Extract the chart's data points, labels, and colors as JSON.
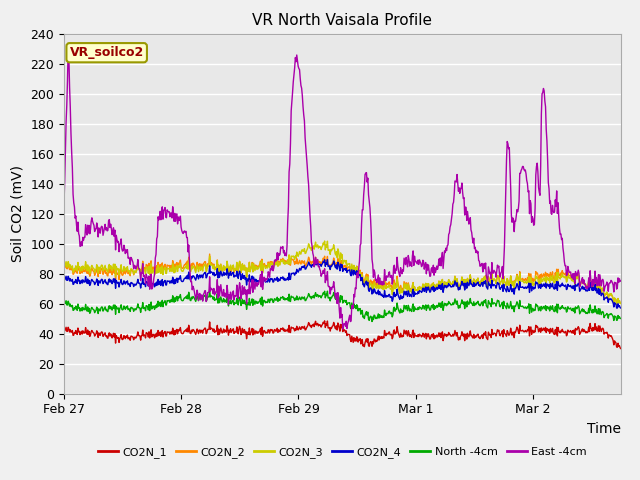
{
  "title": "VR North Vaisala Profile",
  "ylabel": "Soil CO2 (mV)",
  "xlabel": "Time",
  "annotation": "VR_soilco2",
  "ylim": [
    0,
    240
  ],
  "yticks": [
    0,
    20,
    40,
    60,
    80,
    100,
    120,
    140,
    160,
    180,
    200,
    220,
    240
  ],
  "fig_bg_color": "#f0f0f0",
  "plot_bg_color": "#e8e8e8",
  "n_points": 800,
  "series": {
    "CO2N_1": {
      "color": "#cc0000",
      "features": [
        {
          "t": 0.0,
          "v": 42
        },
        {
          "t": 0.05,
          "v": 41
        },
        {
          "t": 0.1,
          "v": 37
        },
        {
          "t": 0.15,
          "v": 39
        },
        {
          "t": 0.2,
          "v": 41
        },
        {
          "t": 0.25,
          "v": 42
        },
        {
          "t": 0.3,
          "v": 42
        },
        {
          "t": 0.35,
          "v": 41
        },
        {
          "t": 0.4,
          "v": 42
        },
        {
          "t": 0.45,
          "v": 46
        },
        {
          "t": 0.5,
          "v": 44
        },
        {
          "t": 0.52,
          "v": 35
        },
        {
          "t": 0.55,
          "v": 34
        },
        {
          "t": 0.58,
          "v": 40
        },
        {
          "t": 0.6,
          "v": 40
        },
        {
          "t": 0.65,
          "v": 39
        },
        {
          "t": 0.7,
          "v": 39
        },
        {
          "t": 0.75,
          "v": 38
        },
        {
          "t": 0.8,
          "v": 41
        },
        {
          "t": 0.85,
          "v": 43
        },
        {
          "t": 0.9,
          "v": 41
        },
        {
          "t": 0.92,
          "v": 42
        },
        {
          "t": 0.95,
          "v": 43
        },
        {
          "t": 0.97,
          "v": 42
        },
        {
          "t": 1.0,
          "v": 30
        }
      ],
      "noise": 1.5
    },
    "CO2N_2": {
      "color": "#ff8800",
      "features": [
        {
          "t": 0.0,
          "v": 84
        },
        {
          "t": 0.05,
          "v": 82
        },
        {
          "t": 0.1,
          "v": 80
        },
        {
          "t": 0.15,
          "v": 84
        },
        {
          "t": 0.2,
          "v": 85
        },
        {
          "t": 0.25,
          "v": 86
        },
        {
          "t": 0.3,
          "v": 83
        },
        {
          "t": 0.35,
          "v": 85
        },
        {
          "t": 0.4,
          "v": 88
        },
        {
          "t": 0.45,
          "v": 88
        },
        {
          "t": 0.5,
          "v": 86
        },
        {
          "t": 0.53,
          "v": 80
        },
        {
          "t": 0.55,
          "v": 75
        },
        {
          "t": 0.6,
          "v": 72
        },
        {
          "t": 0.63,
          "v": 70
        },
        {
          "t": 0.65,
          "v": 72
        },
        {
          "t": 0.7,
          "v": 74
        },
        {
          "t": 0.75,
          "v": 75
        },
        {
          "t": 0.8,
          "v": 75
        },
        {
          "t": 0.85,
          "v": 78
        },
        {
          "t": 0.9,
          "v": 80
        },
        {
          "t": 0.95,
          "v": 72
        },
        {
          "t": 1.0,
          "v": 60
        }
      ],
      "noise": 2.0
    },
    "CO2N_3": {
      "color": "#cccc00",
      "features": [
        {
          "t": 0.0,
          "v": 85
        },
        {
          "t": 0.05,
          "v": 84
        },
        {
          "t": 0.1,
          "v": 83
        },
        {
          "t": 0.15,
          "v": 82
        },
        {
          "t": 0.2,
          "v": 83
        },
        {
          "t": 0.25,
          "v": 84
        },
        {
          "t": 0.3,
          "v": 84
        },
        {
          "t": 0.35,
          "v": 84
        },
        {
          "t": 0.4,
          "v": 87
        },
        {
          "t": 0.43,
          "v": 96
        },
        {
          "t": 0.45,
          "v": 98
        },
        {
          "t": 0.48,
          "v": 97
        },
        {
          "t": 0.5,
          "v": 90
        },
        {
          "t": 0.53,
          "v": 79
        },
        {
          "t": 0.55,
          "v": 73
        },
        {
          "t": 0.6,
          "v": 70
        },
        {
          "t": 0.63,
          "v": 70
        },
        {
          "t": 0.65,
          "v": 72
        },
        {
          "t": 0.7,
          "v": 74
        },
        {
          "t": 0.75,
          "v": 75
        },
        {
          "t": 0.8,
          "v": 75
        },
        {
          "t": 0.85,
          "v": 75
        },
        {
          "t": 0.9,
          "v": 78
        },
        {
          "t": 0.95,
          "v": 73
        },
        {
          "t": 1.0,
          "v": 60
        }
      ],
      "noise": 2.0
    },
    "CO2N_4": {
      "color": "#0000cc",
      "features": [
        {
          "t": 0.0,
          "v": 76
        },
        {
          "t": 0.05,
          "v": 75
        },
        {
          "t": 0.1,
          "v": 74
        },
        {
          "t": 0.15,
          "v": 73
        },
        {
          "t": 0.2,
          "v": 75
        },
        {
          "t": 0.25,
          "v": 79
        },
        {
          "t": 0.28,
          "v": 80
        },
        {
          "t": 0.3,
          "v": 80
        },
        {
          "t": 0.35,
          "v": 75
        },
        {
          "t": 0.4,
          "v": 76
        },
        {
          "t": 0.43,
          "v": 85
        },
        {
          "t": 0.45,
          "v": 86
        },
        {
          "t": 0.48,
          "v": 86
        },
        {
          "t": 0.5,
          "v": 84
        },
        {
          "t": 0.53,
          "v": 78
        },
        {
          "t": 0.55,
          "v": 70
        },
        {
          "t": 0.58,
          "v": 65
        },
        {
          "t": 0.6,
          "v": 65
        },
        {
          "t": 0.63,
          "v": 67
        },
        {
          "t": 0.65,
          "v": 70
        },
        {
          "t": 0.7,
          "v": 72
        },
        {
          "t": 0.75,
          "v": 73
        },
        {
          "t": 0.8,
          "v": 70
        },
        {
          "t": 0.85,
          "v": 72
        },
        {
          "t": 0.9,
          "v": 72
        },
        {
          "t": 0.95,
          "v": 70
        },
        {
          "t": 1.0,
          "v": 57
        }
      ],
      "noise": 1.5
    },
    "North_4cm": {
      "color": "#00aa00",
      "features": [
        {
          "t": 0.0,
          "v": 60
        },
        {
          "t": 0.03,
          "v": 57
        },
        {
          "t": 0.06,
          "v": 56
        },
        {
          "t": 0.1,
          "v": 57
        },
        {
          "t": 0.15,
          "v": 57
        },
        {
          "t": 0.2,
          "v": 63
        },
        {
          "t": 0.25,
          "v": 64
        },
        {
          "t": 0.28,
          "v": 63
        },
        {
          "t": 0.3,
          "v": 61
        },
        {
          "t": 0.35,
          "v": 61
        },
        {
          "t": 0.4,
          "v": 63
        },
        {
          "t": 0.43,
          "v": 64
        },
        {
          "t": 0.45,
          "v": 65
        },
        {
          "t": 0.48,
          "v": 65
        },
        {
          "t": 0.5,
          "v": 63
        },
        {
          "t": 0.53,
          "v": 55
        },
        {
          "t": 0.55,
          "v": 51
        },
        {
          "t": 0.57,
          "v": 52
        },
        {
          "t": 0.6,
          "v": 56
        },
        {
          "t": 0.63,
          "v": 57
        },
        {
          "t": 0.65,
          "v": 58
        },
        {
          "t": 0.7,
          "v": 60
        },
        {
          "t": 0.75,
          "v": 60
        },
        {
          "t": 0.8,
          "v": 59
        },
        {
          "t": 0.85,
          "v": 57
        },
        {
          "t": 0.9,
          "v": 57
        },
        {
          "t": 0.95,
          "v": 55
        },
        {
          "t": 1.0,
          "v": 50
        }
      ],
      "noise": 1.5
    },
    "East_4cm": {
      "color": "#aa00aa",
      "features": [
        {
          "t": 0.0,
          "v": 125
        },
        {
          "t": 0.004,
          "v": 180
        },
        {
          "t": 0.008,
          "v": 232
        },
        {
          "t": 0.012,
          "v": 180
        },
        {
          "t": 0.016,
          "v": 140
        },
        {
          "t": 0.02,
          "v": 120
        },
        {
          "t": 0.025,
          "v": 110
        },
        {
          "t": 0.03,
          "v": 100
        },
        {
          "t": 0.04,
          "v": 108
        },
        {
          "t": 0.05,
          "v": 115
        },
        {
          "t": 0.06,
          "v": 110
        },
        {
          "t": 0.07,
          "v": 108
        },
        {
          "t": 0.08,
          "v": 113
        },
        {
          "t": 0.09,
          "v": 105
        },
        {
          "t": 0.1,
          "v": 100
        },
        {
          "t": 0.11,
          "v": 95
        },
        {
          "t": 0.12,
          "v": 90
        },
        {
          "t": 0.13,
          "v": 85
        },
        {
          "t": 0.14,
          "v": 80
        },
        {
          "t": 0.15,
          "v": 75
        },
        {
          "t": 0.16,
          "v": 72
        },
        {
          "t": 0.17,
          "v": 118
        },
        {
          "t": 0.18,
          "v": 122
        },
        {
          "t": 0.19,
          "v": 120
        },
        {
          "t": 0.2,
          "v": 118
        },
        {
          "t": 0.21,
          "v": 112
        },
        {
          "t": 0.22,
          "v": 105
        },
        {
          "t": 0.23,
          "v": 70
        },
        {
          "t": 0.24,
          "v": 66
        },
        {
          "t": 0.25,
          "v": 65
        },
        {
          "t": 0.26,
          "v": 66
        },
        {
          "t": 0.27,
          "v": 68
        },
        {
          "t": 0.28,
          "v": 70
        },
        {
          "t": 0.29,
          "v": 66
        },
        {
          "t": 0.3,
          "v": 65
        },
        {
          "t": 0.31,
          "v": 67
        },
        {
          "t": 0.32,
          "v": 68
        },
        {
          "t": 0.33,
          "v": 70
        },
        {
          "t": 0.34,
          "v": 72
        },
        {
          "t": 0.35,
          "v": 74
        },
        {
          "t": 0.36,
          "v": 76
        },
        {
          "t": 0.37,
          "v": 80
        },
        {
          "t": 0.38,
          "v": 88
        },
        {
          "t": 0.39,
          "v": 95
        },
        {
          "t": 0.4,
          "v": 92
        },
        {
          "t": 0.408,
          "v": 185
        },
        {
          "t": 0.415,
          "v": 224
        },
        {
          "t": 0.42,
          "v": 222
        },
        {
          "t": 0.425,
          "v": 210
        },
        {
          "t": 0.43,
          "v": 190
        },
        {
          "t": 0.435,
          "v": 165
        },
        {
          "t": 0.44,
          "v": 130
        },
        {
          "t": 0.445,
          "v": 100
        },
        {
          "t": 0.45,
          "v": 85
        },
        {
          "t": 0.455,
          "v": 88
        },
        {
          "t": 0.46,
          "v": 82
        },
        {
          "t": 0.465,
          "v": 78
        },
        {
          "t": 0.47,
          "v": 76
        },
        {
          "t": 0.475,
          "v": 74
        },
        {
          "t": 0.48,
          "v": 72
        },
        {
          "t": 0.49,
          "v": 65
        },
        {
          "t": 0.5,
          "v": 48
        },
        {
          "t": 0.505,
          "v": 46
        },
        {
          "t": 0.51,
          "v": 47
        },
        {
          "t": 0.515,
          "v": 52
        },
        {
          "t": 0.52,
          "v": 60
        },
        {
          "t": 0.53,
          "v": 82
        },
        {
          "t": 0.54,
          "v": 148
        },
        {
          "t": 0.548,
          "v": 135
        },
        {
          "t": 0.555,
          "v": 82
        },
        {
          "t": 0.56,
          "v": 78
        },
        {
          "t": 0.565,
          "v": 76
        },
        {
          "t": 0.57,
          "v": 75
        },
        {
          "t": 0.58,
          "v": 78
        },
        {
          "t": 0.59,
          "v": 80
        },
        {
          "t": 0.6,
          "v": 82
        },
        {
          "t": 0.61,
          "v": 85
        },
        {
          "t": 0.62,
          "v": 88
        },
        {
          "t": 0.63,
          "v": 90
        },
        {
          "t": 0.64,
          "v": 88
        },
        {
          "t": 0.65,
          "v": 85
        },
        {
          "t": 0.66,
          "v": 83
        },
        {
          "t": 0.67,
          "v": 85
        },
        {
          "t": 0.68,
          "v": 90
        },
        {
          "t": 0.69,
          "v": 100
        },
        {
          "t": 0.7,
          "v": 130
        },
        {
          "t": 0.705,
          "v": 143
        },
        {
          "t": 0.71,
          "v": 140
        },
        {
          "t": 0.715,
          "v": 135
        },
        {
          "t": 0.72,
          "v": 125
        },
        {
          "t": 0.73,
          "v": 110
        },
        {
          "t": 0.74,
          "v": 95
        },
        {
          "t": 0.75,
          "v": 85
        },
        {
          "t": 0.76,
          "v": 80
        },
        {
          "t": 0.77,
          "v": 80
        },
        {
          "t": 0.78,
          "v": 80
        },
        {
          "t": 0.79,
          "v": 82
        },
        {
          "t": 0.795,
          "v": 165
        },
        {
          "t": 0.8,
          "v": 168
        },
        {
          "t": 0.803,
          "v": 120
        },
        {
          "t": 0.81,
          "v": 115
        },
        {
          "t": 0.815,
          "v": 118
        },
        {
          "t": 0.82,
          "v": 148
        },
        {
          "t": 0.825,
          "v": 152
        },
        {
          "t": 0.83,
          "v": 148
        },
        {
          "t": 0.835,
          "v": 130
        },
        {
          "t": 0.84,
          "v": 120
        },
        {
          "t": 0.845,
          "v": 115
        },
        {
          "t": 0.848,
          "v": 148
        },
        {
          "t": 0.85,
          "v": 150
        },
        {
          "t": 0.855,
          "v": 130
        },
        {
          "t": 0.858,
          "v": 200
        },
        {
          "t": 0.86,
          "v": 202
        },
        {
          "t": 0.863,
          "v": 200
        },
        {
          "t": 0.866,
          "v": 180
        },
        {
          "t": 0.87,
          "v": 140
        },
        {
          "t": 0.875,
          "v": 120
        },
        {
          "t": 0.88,
          "v": 125
        },
        {
          "t": 0.885,
          "v": 130
        },
        {
          "t": 0.888,
          "v": 120
        },
        {
          "t": 0.89,
          "v": 110
        },
        {
          "t": 0.895,
          "v": 100
        },
        {
          "t": 0.9,
          "v": 85
        },
        {
          "t": 0.91,
          "v": 80
        },
        {
          "t": 0.92,
          "v": 78
        },
        {
          "t": 0.93,
          "v": 76
        },
        {
          "t": 0.94,
          "v": 74
        },
        {
          "t": 0.95,
          "v": 74
        },
        {
          "t": 0.96,
          "v": 74
        },
        {
          "t": 0.97,
          "v": 73
        },
        {
          "t": 0.98,
          "v": 72
        },
        {
          "t": 0.99,
          "v": 73
        },
        {
          "t": 1.0,
          "v": 75
        }
      ],
      "noise": 3.0
    }
  },
  "legend_entries": [
    "CO2N_1",
    "CO2N_2",
    "CO2N_3",
    "CO2N_4",
    "North -4cm",
    "East -4cm"
  ],
  "legend_colors": [
    "#cc0000",
    "#ff8800",
    "#cccc00",
    "#0000cc",
    "#00aa00",
    "#aa00aa"
  ],
  "xtick_labels": [
    "Feb 27",
    "Feb 28",
    "Feb 29",
    "Mar 1",
    "Mar 2"
  ],
  "grid_color": "#ffffff",
  "title_fontsize": 11,
  "tick_fontsize": 9,
  "label_fontsize": 10
}
